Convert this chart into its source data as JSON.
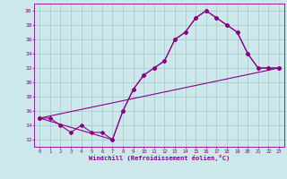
{
  "xlabel": "Windchill (Refroidissement éolien,°C)",
  "bg_color": "#cce8ea",
  "grid_color": "#aacccc",
  "line_color": "#880088",
  "line1_x": [
    0,
    1,
    2,
    3,
    4,
    5,
    6,
    7,
    8,
    9,
    10,
    11,
    12,
    13,
    14,
    15,
    16,
    17,
    18,
    19,
    20,
    21,
    22,
    23
  ],
  "line1_y": [
    15,
    15,
    14,
    13,
    14,
    13,
    13,
    12,
    16,
    19,
    21,
    22,
    23,
    26,
    27,
    29,
    30,
    29,
    28,
    27,
    24,
    22,
    22,
    22
  ],
  "line2_x": [
    0,
    7,
    8,
    9,
    10,
    11,
    12,
    13,
    14,
    15,
    16,
    17,
    18,
    19,
    20,
    21,
    22,
    23
  ],
  "line2_y": [
    15,
    12,
    16,
    19,
    21,
    22,
    23,
    26,
    27,
    29,
    30,
    29,
    28,
    27,
    24,
    22,
    22,
    22
  ],
  "line3_x": [
    0,
    23
  ],
  "line3_y": [
    15,
    22
  ],
  "xlim": [
    -0.5,
    23.5
  ],
  "ylim": [
    11,
    31
  ],
  "yticks": [
    12,
    14,
    16,
    18,
    20,
    22,
    24,
    26,
    28,
    30
  ],
  "xticks": [
    0,
    1,
    2,
    3,
    4,
    5,
    6,
    7,
    8,
    9,
    10,
    11,
    12,
    13,
    14,
    15,
    16,
    17,
    18,
    19,
    20,
    21,
    22,
    23
  ]
}
